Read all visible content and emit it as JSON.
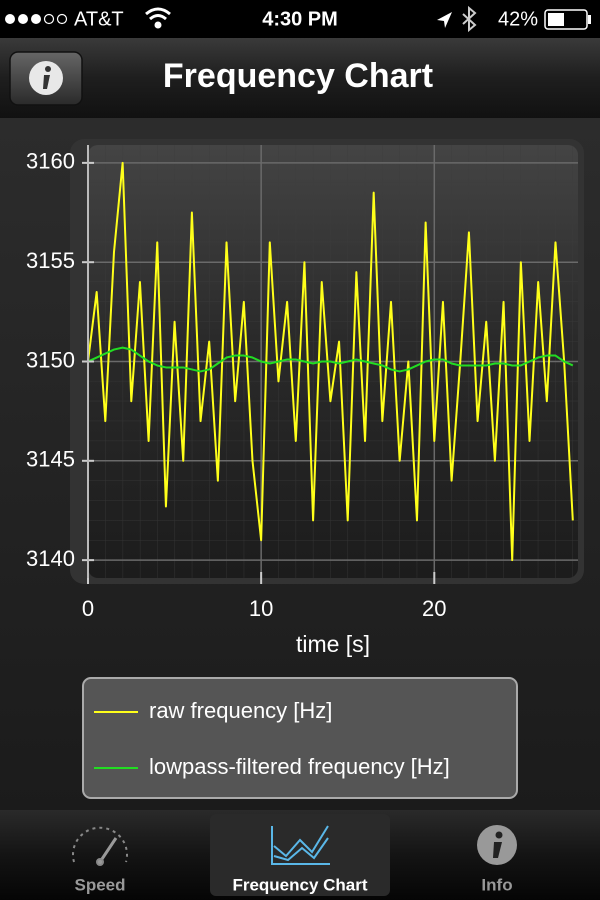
{
  "status_bar": {
    "carrier": "AT&T",
    "time": "4:30 PM",
    "battery": "42%"
  },
  "nav_bar": {
    "title": "Frequency Chart"
  },
  "chart_data": {
    "type": "line",
    "x_label": "time [s]",
    "x": [
      0,
      0.5,
      1,
      1.5,
      2,
      2.5,
      3,
      3.5,
      4,
      4.5,
      5,
      5.5,
      6,
      6.5,
      7,
      7.5,
      8,
      8.5,
      9,
      9.5,
      10,
      10.5,
      11,
      11.5,
      12,
      12.5,
      13,
      13.5,
      14,
      14.5,
      15,
      15.5,
      16,
      16.5,
      17,
      17.5,
      18,
      18.5,
      19,
      19.5,
      20,
      20.5,
      21,
      21.5,
      22,
      22.5,
      23,
      23.5,
      24,
      24.5,
      25,
      25.5,
      26,
      26.5,
      27,
      27.5,
      28
    ],
    "series": [
      {
        "name": "raw frequency [Hz]",
        "color": "#ffff1a",
        "values": [
          3150,
          3153.5,
          3147,
          3155.5,
          3160,
          3148,
          3154,
          3146,
          3156,
          3142.7,
          3152,
          3145,
          3157.5,
          3147,
          3151,
          3144,
          3156,
          3148,
          3153,
          3145,
          3141,
          3156,
          3149,
          3153,
          3146,
          3155,
          3142,
          3154,
          3148,
          3151,
          3142,
          3154.5,
          3146,
          3158.5,
          3147,
          3153,
          3145,
          3150,
          3142,
          3157,
          3146,
          3153,
          3144,
          3150,
          3156.5,
          3147,
          3152,
          3145,
          3153,
          3140,
          3155,
          3146,
          3154,
          3148,
          3156,
          3150,
          3142
        ]
      },
      {
        "name": "lowpass-filtered frequency [Hz]",
        "color": "#22dd22",
        "values": [
          3150,
          3150.2,
          3150.4,
          3150.6,
          3150.7,
          3150.6,
          3150.3,
          3150,
          3149.8,
          3149.7,
          3149.7,
          3149.7,
          3149.6,
          3149.5,
          3149.6,
          3149.9,
          3150.2,
          3150.3,
          3150.3,
          3150.2,
          3150,
          3149.9,
          3150,
          3150.1,
          3150.1,
          3150,
          3149.9,
          3150,
          3150,
          3149.9,
          3150,
          3150.1,
          3150,
          3149.9,
          3149.8,
          3149.6,
          3149.5,
          3149.6,
          3149.8,
          3150,
          3150.1,
          3150.1,
          3149.9,
          3149.8,
          3149.8,
          3149.8,
          3149.8,
          3149.9,
          3149.9,
          3149.8,
          3149.8,
          3150,
          3150.2,
          3150.3,
          3150.3,
          3150,
          3149.8
        ]
      }
    ],
    "xlim": [
      0,
      28.3
    ],
    "ylim": [
      3139.1,
      3160.9
    ],
    "xticks": [
      0,
      10,
      20
    ],
    "yticks": [
      3140,
      3145,
      3150,
      3155,
      3160
    ],
    "grid": true
  },
  "tab_bar": {
    "tabs": [
      "Speed",
      "Frequency Chart",
      "Info"
    ],
    "selected": 1
  }
}
